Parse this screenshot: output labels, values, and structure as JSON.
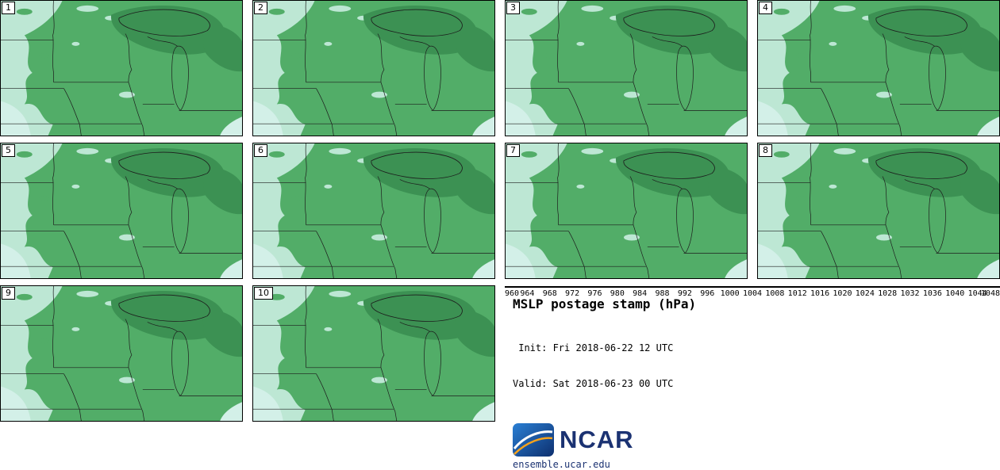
{
  "theme": {
    "map_pale": "#bde7d4",
    "map_pale2": "#d3f0e8",
    "map_green": "#52ad68",
    "map_dark": "#3c9153",
    "map_line": "#1c1c1c",
    "text_navy": "#1b3272",
    "logo_orange": "#f5a21c",
    "logo_blue_light": "#2a7fd4",
    "logo_blue_dark": "#0d2f6e"
  },
  "panels": [
    {
      "label": "1"
    },
    {
      "label": "2"
    },
    {
      "label": "3"
    },
    {
      "label": "4"
    },
    {
      "label": "5"
    },
    {
      "label": "6"
    },
    {
      "label": "7"
    },
    {
      "label": "8"
    },
    {
      "label": "9"
    },
    {
      "label": "10"
    }
  ],
  "colorbar": {
    "units": "hPa",
    "ticks": [
      "960",
      "964",
      "968",
      "972",
      "976",
      "980",
      "984",
      "988",
      "992",
      "996",
      "1000",
      "1004",
      "1008",
      "1012",
      "1016",
      "1020",
      "1024",
      "1028",
      "1032",
      "1036",
      "1040",
      "1044",
      "1048"
    ],
    "colors": [
      "#ffffff",
      "#e6e6e6",
      "#c2c8ce",
      "#96a2ae",
      "#6a7c8a",
      "#44556a",
      "#293c57",
      "#1e4e7c",
      "#2a70a6",
      "#5898c6",
      "#7fc0cf",
      "#aadfd2",
      "#bfe9d6",
      "#52ad68",
      "#3c9153",
      "#2e7d43",
      "#8cc63f",
      "#e8e83c",
      "#f5c028",
      "#f08c1e",
      "#e8581a",
      "#a01212"
    ]
  },
  "info": {
    "title": "MSLP postage stamp (hPa)",
    "init_line": " Init: Fri 2018-06-22 12 UTC",
    "valid_line": "Valid: Sat 2018-06-23 00 UTC",
    "logo_text": "NCAR",
    "url": "ensemble.ucar.edu"
  }
}
